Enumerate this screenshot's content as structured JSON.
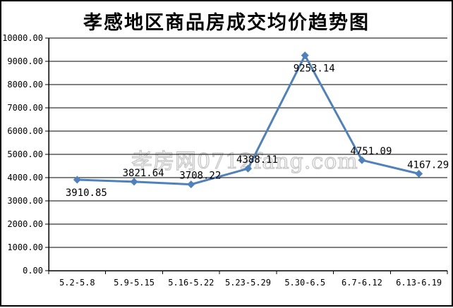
{
  "title": "孝感地区商品房成交均价趋势图",
  "watermark": "孝房网0712fang.com",
  "chart_data": {
    "type": "line",
    "title": "孝感地区商品房成交均价趋势图",
    "xlabel": "",
    "ylabel": "",
    "categories": [
      "5.2-5.8",
      "5.9-5.15",
      "5.16-5.22",
      "5.23-5.29",
      "5.30-6.5",
      "6.7-6.12",
      "6.13-6.19"
    ],
    "series": [
      {
        "name": "成交均价",
        "values": [
          3910.85,
          3821.64,
          3708.22,
          4388.11,
          9253.14,
          4751.09,
          4167.29
        ],
        "point_labels": [
          "3910.85",
          "3821.64",
          "3708.22",
          "4388.11",
          "9253.14",
          "4751.09",
          "4167.29"
        ],
        "label_placement": [
          "below",
          "above",
          "above",
          "above",
          "below",
          "above",
          "above"
        ],
        "line_color": "#4F81BD",
        "marker": "diamond"
      }
    ],
    "ylim": [
      0,
      10000
    ],
    "ytick_step": 1000,
    "ytick_labels": [
      "0.00",
      "1000.00",
      "2000.00",
      "3000.00",
      "4000.00",
      "5000.00",
      "6000.00",
      "7000.00",
      "8000.00",
      "9000.00",
      "10000.00"
    ],
    "grid": true,
    "legend": "none",
    "gridline_color": "#000000",
    "background_color": "#ffffff"
  }
}
